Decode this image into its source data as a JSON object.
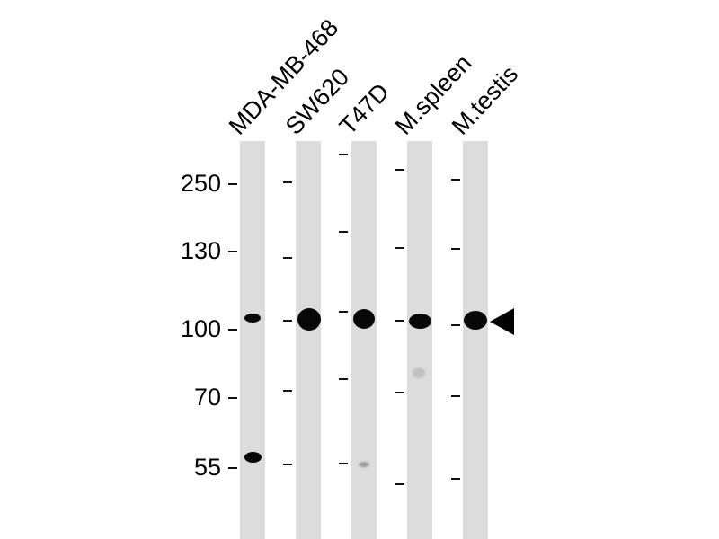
{
  "lanes": [
    {
      "label": "MDA-MB-468"
    },
    {
      "label": "SW620"
    },
    {
      "label": "T47D"
    },
    {
      "label": "M.spleen"
    },
    {
      "label": "M.testis"
    }
  ],
  "markers": [
    "250",
    "130",
    "100",
    "70",
    "55"
  ],
  "target_arrow": "arrow-left-icon"
}
